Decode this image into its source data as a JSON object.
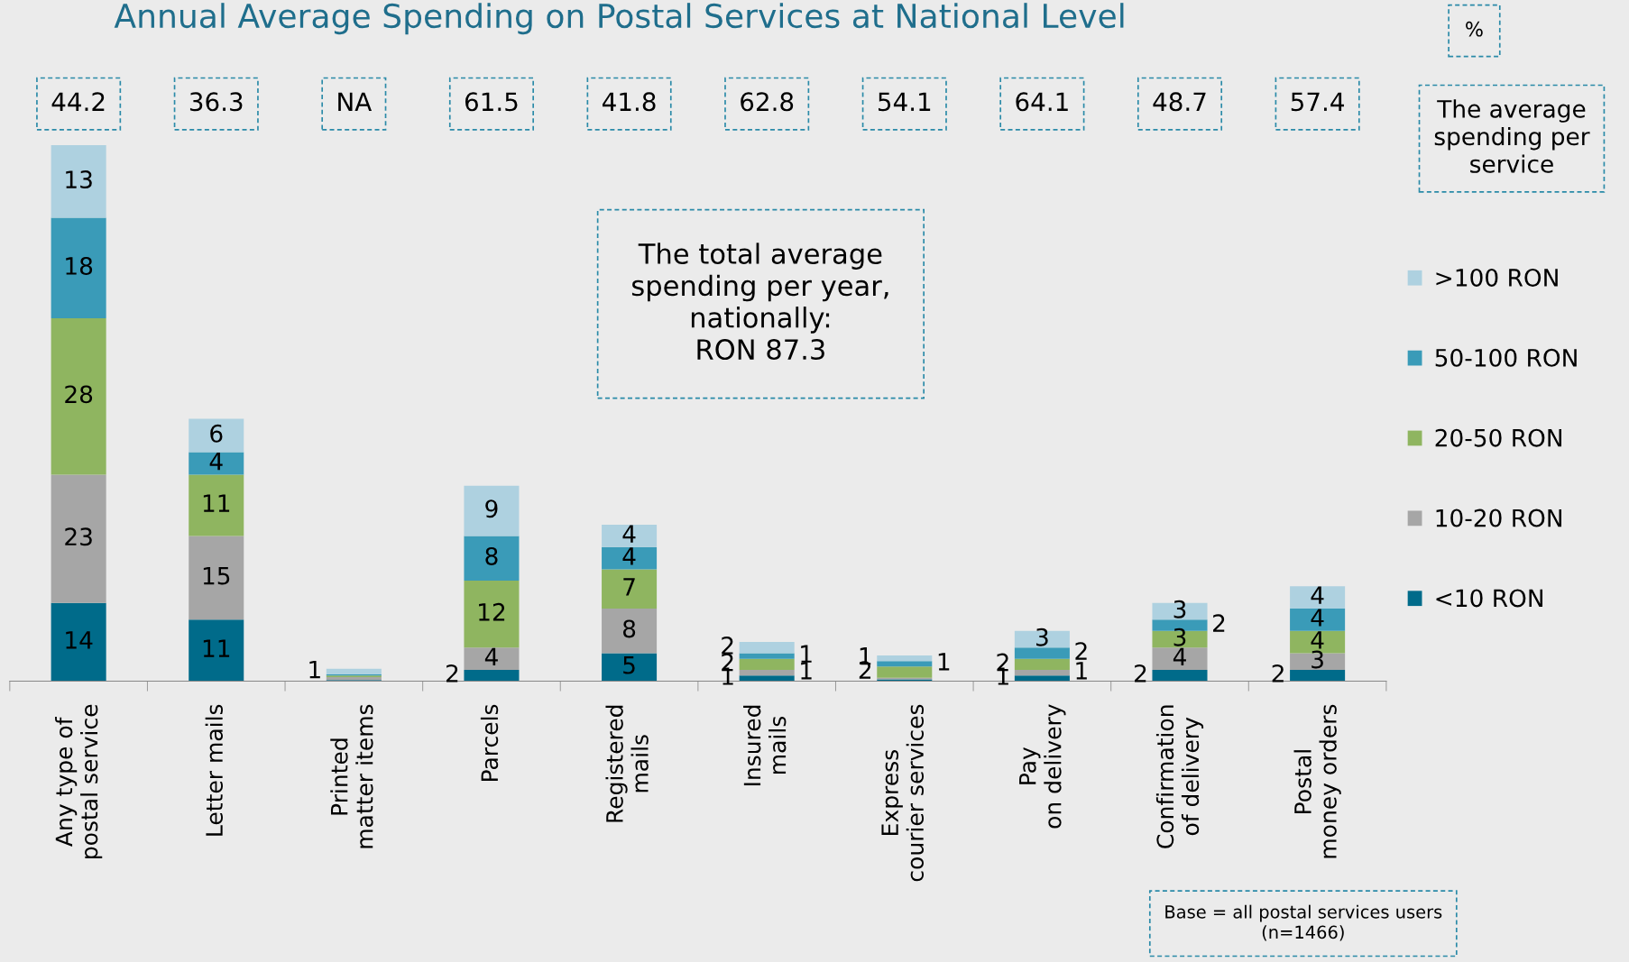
{
  "chart_data": {
    "type": "bar",
    "title": "Annual Average Spending on Postal Services at National Level",
    "stacked": true,
    "legend": "right",
    "grid": false,
    "categories": [
      "Any type of\npostal service",
      "Letter mails",
      "Printed\nmatter items",
      "Parcels",
      "Registered\nmails",
      "Insured\nmails",
      "Express\ncourier services",
      "Pay\non delivery",
      "Confirmation\nof delivery",
      "Postal\nmoney orders"
    ],
    "series": [
      {
        "name": "<10 RON",
        "color": "#006b8a",
        "values": [
          14,
          11,
          0.2,
          2,
          5,
          1,
          0.3,
          1,
          2,
          2
        ],
        "value_labels": [
          "14",
          "11",
          null,
          "2",
          "5",
          "1",
          null,
          "1",
          "2",
          "2"
        ]
      },
      {
        "name": "10-20 RON",
        "color": "#a6a6a6",
        "values": [
          23,
          15,
          0.5,
          4,
          8,
          1,
          0.3,
          1,
          4,
          3
        ],
        "value_labels": [
          "23",
          "15",
          null,
          "4",
          "8",
          "1",
          null,
          "1",
          "4",
          "3"
        ]
      },
      {
        "name": "20-50 RON",
        "color": "#8fb560",
        "values": [
          28,
          11,
          0.3,
          12,
          7,
          2,
          2,
          2,
          3,
          4
        ],
        "value_labels": [
          "28",
          "11",
          null,
          "12",
          "7",
          "2",
          "2",
          "2",
          "3",
          "4"
        ]
      },
      {
        "name": "50-100 RON",
        "color": "#3a9bb8",
        "values": [
          18,
          4,
          0.2,
          8,
          4,
          1,
          1,
          2,
          2,
          4
        ],
        "value_labels": [
          "18",
          "4",
          null,
          "8",
          "4",
          "1",
          "1",
          "2",
          "2",
          "4"
        ]
      },
      {
        "name": ">100 RON",
        "color": "#aed1e0",
        "values": [
          13,
          6,
          1,
          9,
          4,
          2,
          1,
          3,
          3,
          4
        ],
        "value_labels": [
          "13",
          "6",
          "1",
          "9",
          "4",
          "2",
          "1",
          "3",
          "3",
          "4"
        ]
      }
    ],
    "annotations": [
      "44.2",
      "36.3",
      "NA",
      "61.5",
      "41.8",
      "62.8",
      "54.1",
      "64.1",
      "48.7",
      "57.4",
      "%",
      "The average\nspending per\nservice",
      "The total average\nspending per year,\nnationally:\nRON 87.3",
      "Base = all postal services users\n(n=1466)"
    ]
  }
}
